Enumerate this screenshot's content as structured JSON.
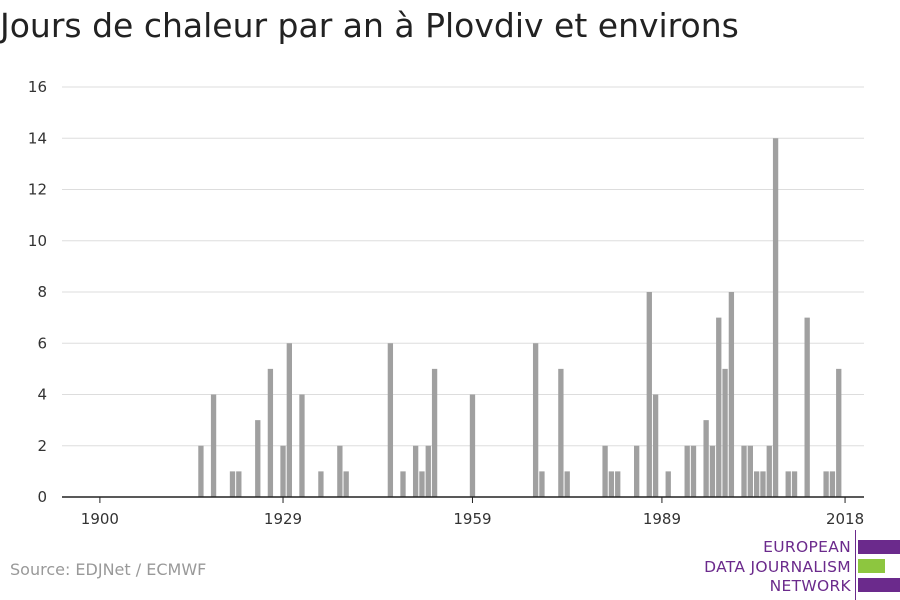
{
  "title": "Jours de chaleur par an à Plovdiv et environs",
  "source": "Source: EDJNet / ECMWF",
  "logo": {
    "lines": [
      "EUROPEAN",
      "DATA JOURNALISM",
      "NETWORK"
    ],
    "colors": {
      "purple": "#6b2a8c",
      "green": "#8dc63f"
    }
  },
  "chart_data": {
    "type": "bar",
    "title": "Jours de chaleur par an à Plovdiv et environs",
    "xlabel": "",
    "ylabel": "",
    "xlim": [
      1894,
      2021
    ],
    "ylim": [
      0,
      16
    ],
    "yticks": [
      0,
      2,
      4,
      6,
      8,
      10,
      12,
      14,
      16
    ],
    "xticks": [
      1900,
      1929,
      1959,
      1989,
      2018
    ],
    "grid": true,
    "bar_color": "#a0a0a0",
    "x": [
      1900,
      1901,
      1902,
      1903,
      1904,
      1905,
      1906,
      1907,
      1908,
      1909,
      1910,
      1911,
      1912,
      1913,
      1914,
      1915,
      1916,
      1917,
      1918,
      1919,
      1920,
      1921,
      1922,
      1923,
      1924,
      1925,
      1926,
      1927,
      1928,
      1929,
      1930,
      1931,
      1932,
      1933,
      1934,
      1935,
      1936,
      1937,
      1938,
      1939,
      1940,
      1941,
      1942,
      1943,
      1944,
      1945,
      1946,
      1947,
      1948,
      1949,
      1950,
      1951,
      1952,
      1953,
      1954,
      1955,
      1956,
      1957,
      1958,
      1959,
      1960,
      1961,
      1962,
      1963,
      1964,
      1965,
      1966,
      1967,
      1968,
      1969,
      1970,
      1971,
      1972,
      1973,
      1974,
      1975,
      1976,
      1977,
      1978,
      1979,
      1980,
      1981,
      1982,
      1983,
      1984,
      1985,
      1986,
      1987,
      1988,
      1989,
      1990,
      1991,
      1992,
      1993,
      1994,
      1995,
      1996,
      1997,
      1998,
      1999,
      2000,
      2001,
      2002,
      2003,
      2004,
      2005,
      2006,
      2007,
      2008,
      2009,
      2010,
      2011,
      2012,
      2013,
      2014,
      2015,
      2016,
      2017,
      2018
    ],
    "values": [
      0,
      0,
      0,
      0,
      0,
      0,
      0,
      0,
      0,
      0,
      0,
      0,
      0,
      0,
      0,
      0,
      2,
      0,
      4,
      0,
      0,
      1,
      1,
      0,
      0,
      3,
      0,
      5,
      0,
      2,
      6,
      0,
      4,
      0,
      0,
      1,
      0,
      0,
      2,
      1,
      0,
      0,
      0,
      0,
      0,
      0,
      6,
      0,
      1,
      0,
      2,
      1,
      2,
      5,
      0,
      0,
      0,
      0,
      0,
      4,
      0,
      0,
      0,
      0,
      0,
      0,
      0,
      0,
      0,
      6,
      1,
      0,
      0,
      5,
      1,
      0,
      0,
      0,
      0,
      0,
      2,
      1,
      1,
      0,
      0,
      2,
      0,
      8,
      4,
      0,
      1,
      0,
      0,
      2,
      2,
      0,
      3,
      2,
      7,
      5,
      8,
      0,
      2,
      2,
      1,
      1,
      2,
      14,
      0,
      1,
      1,
      0,
      7,
      0,
      0,
      1,
      1,
      5,
      0
    ]
  }
}
